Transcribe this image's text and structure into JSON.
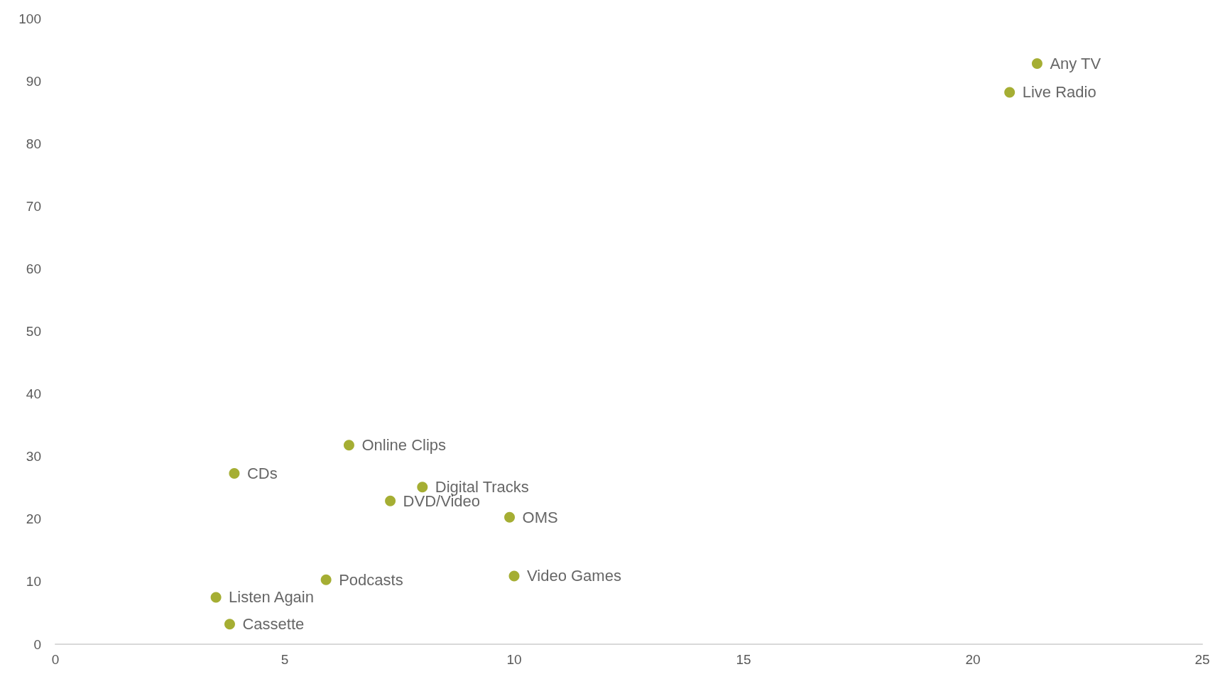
{
  "chart_data": {
    "type": "scatter",
    "x": [
      21.4,
      20.8,
      6.4,
      3.9,
      8.0,
      7.3,
      9.9,
      10.0,
      5.9,
      3.5,
      3.8
    ],
    "series": [
      {
        "color": "#8f9a00",
        "values": [
          92.8,
          88.2,
          31.8,
          27.3,
          25.1,
          22.9,
          20.3,
          10.9,
          10.3,
          7.5,
          3.2
        ]
      }
    ],
    "marker": "circle",
    "xlim": [
      0,
      25
    ],
    "xticks": [
      0,
      5,
      10,
      15,
      20,
      25
    ],
    "ylim": [
      0,
      100
    ],
    "yticks": [
      0,
      10,
      20,
      30,
      40,
      50,
      60,
      70,
      80,
      90,
      100
    ],
    "grid": false,
    "annotations": [
      {
        "text": "Any TV",
        "x": 21.4,
        "y": 92.8
      },
      {
        "text": "Live Radio",
        "x": 20.8,
        "y": 88.2
      },
      {
        "text": "Online Clips",
        "x": 6.4,
        "y": 31.8
      },
      {
        "text": "CDs",
        "x": 3.9,
        "y": 27.3
      },
      {
        "text": "Digital Tracks",
        "x": 8.0,
        "y": 25.1
      },
      {
        "text": "DVD/Video",
        "x": 7.3,
        "y": 22.9
      },
      {
        "text": "OMS",
        "x": 9.9,
        "y": 20.3
      },
      {
        "text": "Video Games",
        "x": 10.0,
        "y": 10.9
      },
      {
        "text": "Podcasts",
        "x": 5.9,
        "y": 10.3
      },
      {
        "text": "Listen Again",
        "x": 3.5,
        "y": 7.5
      },
      {
        "text": "Cassette",
        "x": 3.8,
        "y": 3.2
      }
    ]
  }
}
